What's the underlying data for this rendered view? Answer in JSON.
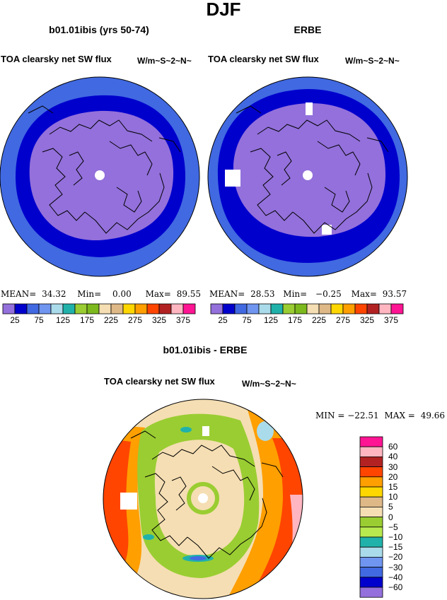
{
  "page": {
    "title": "DJF"
  },
  "panels": [
    {
      "title": "b01.01ibis (yrs 50-74)",
      "left_label": "TOA clearsky net SW flux",
      "right_label": "W/m~S~2~N~",
      "stats": {
        "mean_label": "MEAN=",
        "mean": "34.32",
        "min_label": "Min=",
        "min": "0.00",
        "max_label": "Max=",
        "max": "89.55"
      }
    },
    {
      "title": "ERBE",
      "left_label": "TOA clearsky net SW flux",
      "right_label": "W/m~S~2~N~",
      "stats": {
        "mean_label": "MEAN=",
        "mean": "28.53",
        "min_label": "Min=",
        "min": "−0.25",
        "max_label": "Max=",
        "max": "93.57"
      }
    }
  ],
  "colorbar_top": {
    "colors": [
      "#9370db",
      "#0000cd",
      "#4169e1",
      "#6f95f0",
      "#aadbea",
      "#20b2aa",
      "#9acd32",
      "#7cb91c",
      "#f5deb3",
      "#deb887",
      "#ffd700",
      "#ff9f00",
      "#ff4500",
      "#b22222",
      "#ffb6c1",
      "#ff1493"
    ],
    "labels": [
      "25",
      "75",
      "125",
      "175",
      "225",
      "275",
      "325",
      "375"
    ]
  },
  "diff_panel": {
    "title": "b01.01ibis - ERBE",
    "left_label": "TOA clearsky net SW flux",
    "right_label": "W/m~S~2~N~",
    "stats": {
      "min_label": "MIN =",
      "min": "−22.51",
      "max_label": "MAX =",
      "max": "49.66"
    }
  },
  "colorbar_diff": {
    "colors": [
      "#ff1493",
      "#ffb6c1",
      "#b22222",
      "#ff4500",
      "#ff9f00",
      "#ffd700",
      "#deb887",
      "#f5deb3",
      "#9acd32",
      "#b8ea4f",
      "#20b2aa",
      "#aadbea",
      "#6f95f0",
      "#4169e1",
      "#0000cd",
      "#9370db"
    ],
    "labels": [
      "60",
      "40",
      "30",
      "20",
      "15",
      "10",
      "5",
      "0",
      "−5",
      "−10",
      "−15",
      "−20",
      "−30",
      "−40",
      "−60"
    ]
  },
  "icons": {
    "pole_marker": "white-circle",
    "continent_outline": "coastline"
  }
}
